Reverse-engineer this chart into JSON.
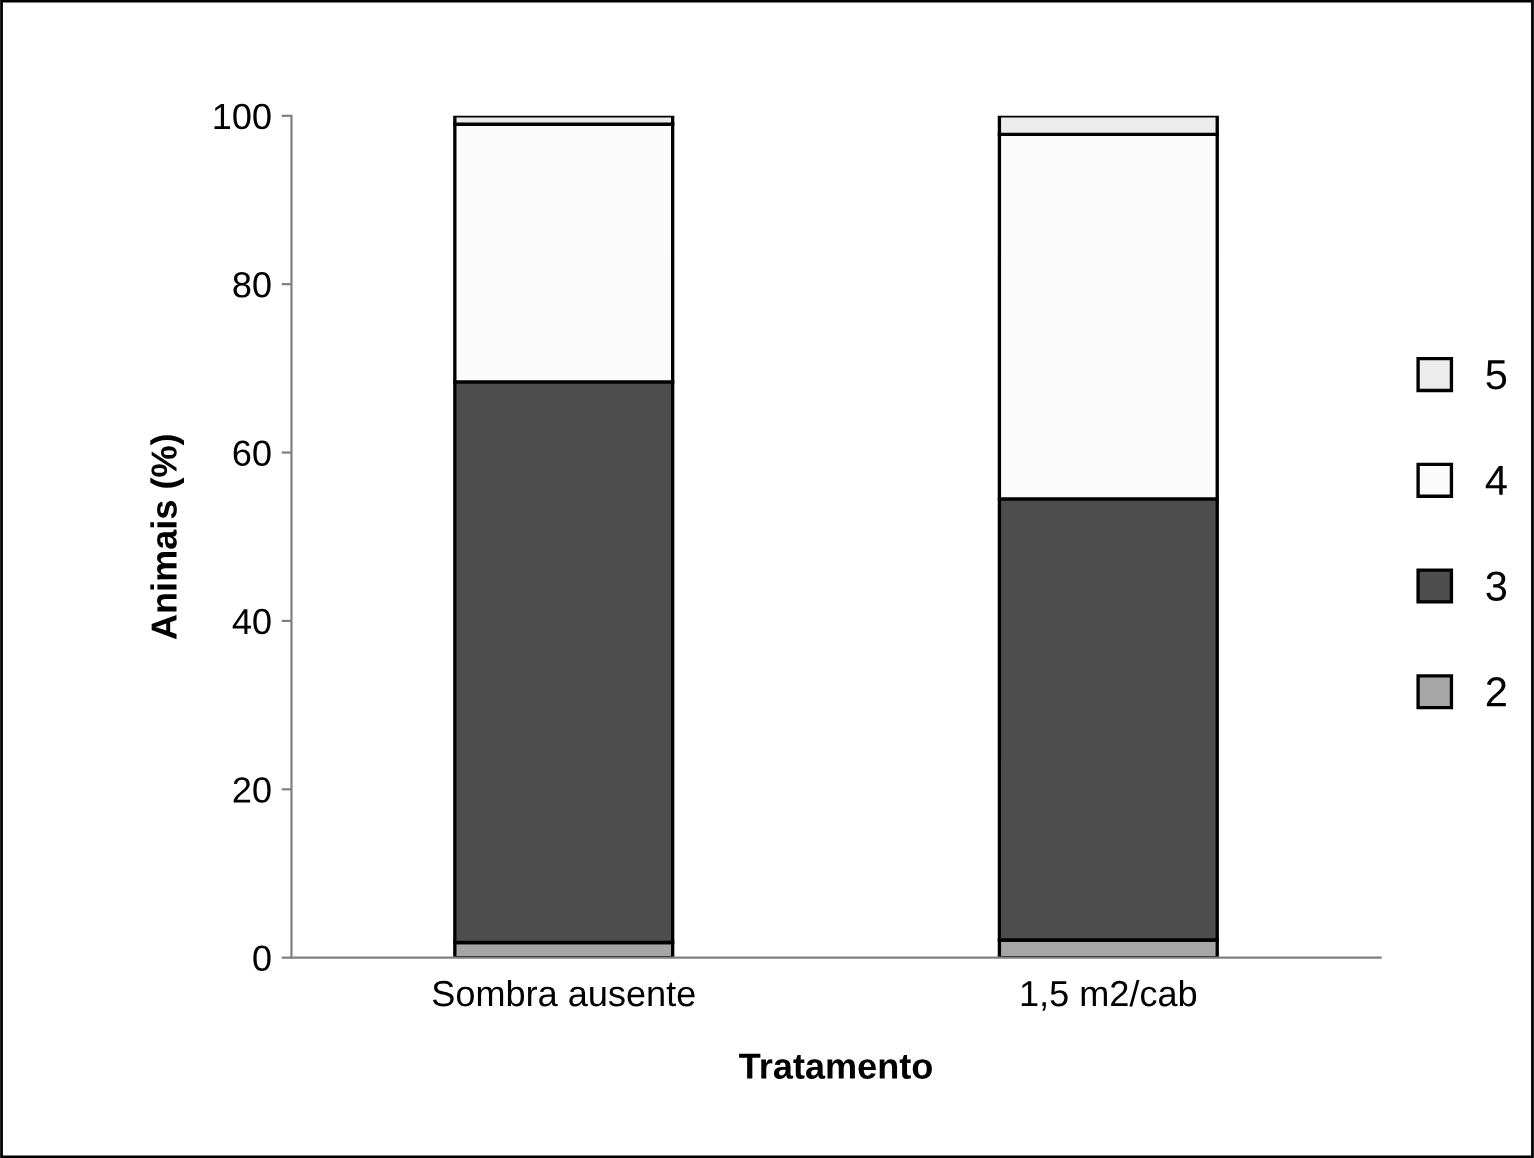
{
  "chart_data": {
    "type": "bar",
    "stacked": true,
    "xlabel": "Tratamento",
    "ylabel": "Animais (%)",
    "categories": [
      "Sombra ausente",
      "1,5 m2/cab"
    ],
    "series": [
      {
        "name": "2",
        "color": "#a6a6a6",
        "values": [
          1.8,
          2.1
        ]
      },
      {
        "name": "3",
        "color": "#4d4d4d",
        "values": [
          66.6,
          52.4
        ]
      },
      {
        "name": "4",
        "color": "#fbfbfb",
        "values": [
          30.6,
          43.3
        ]
      },
      {
        "name": "5",
        "color": "#ececec",
        "values": [
          1.0,
          2.2
        ]
      }
    ],
    "ylim": [
      0,
      100
    ],
    "yticks": [
      0,
      20,
      40,
      60,
      80,
      100
    ],
    "grid": false,
    "legend": "right"
  }
}
